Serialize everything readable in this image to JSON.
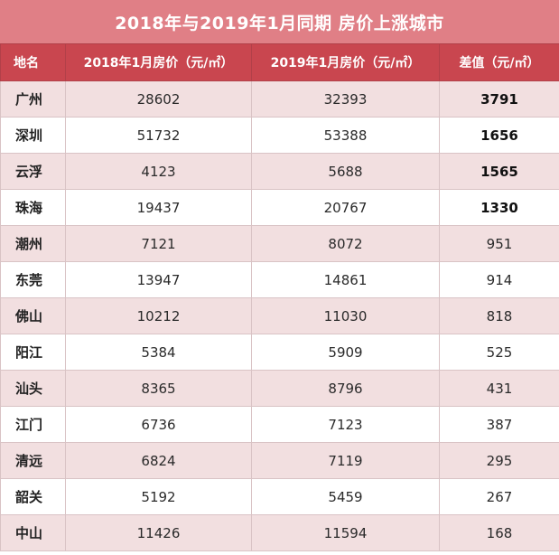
{
  "title": "2018年与2019年1月同期 房价上涨城市",
  "headers": [
    "地名",
    "2018年1月房价（元/㎡）",
    "2019年1月房价（元/㎡）",
    "差值（元/㎡）"
  ],
  "rows": [
    {
      "city": "广州",
      "p2018": "28602",
      "p2019": "32393",
      "diff": "3791",
      "bold": true
    },
    {
      "city": "深圳",
      "p2018": "51732",
      "p2019": "53388",
      "diff": "1656",
      "bold": true
    },
    {
      "city": "云浮",
      "p2018": "4123",
      "p2019": "5688",
      "diff": "1565",
      "bold": true
    },
    {
      "city": "珠海",
      "p2018": "19437",
      "p2019": "20767",
      "diff": "1330",
      "bold": true
    },
    {
      "city": "潮州",
      "p2018": "7121",
      "p2019": "8072",
      "diff": "951",
      "bold": false
    },
    {
      "city": "东莞",
      "p2018": "13947",
      "p2019": "14861",
      "diff": "914",
      "bold": false
    },
    {
      "city": "佛山",
      "p2018": "10212",
      "p2019": "11030",
      "diff": "818",
      "bold": false
    },
    {
      "city": "阳江",
      "p2018": "5384",
      "p2019": "5909",
      "diff": "525",
      "bold": false
    },
    {
      "city": "汕头",
      "p2018": "8365",
      "p2019": "8796",
      "diff": "431",
      "bold": false
    },
    {
      "city": "江门",
      "p2018": "6736",
      "p2019": "7123",
      "diff": "387",
      "bold": false
    },
    {
      "city": "清远",
      "p2018": "6824",
      "p2019": "7119",
      "diff": "295",
      "bold": false
    },
    {
      "city": "韶关",
      "p2018": "5192",
      "p2019": "5459",
      "diff": "267",
      "bold": false
    },
    {
      "city": "中山",
      "p2018": "11426",
      "p2019": "11594",
      "diff": "168",
      "bold": false
    }
  ]
}
